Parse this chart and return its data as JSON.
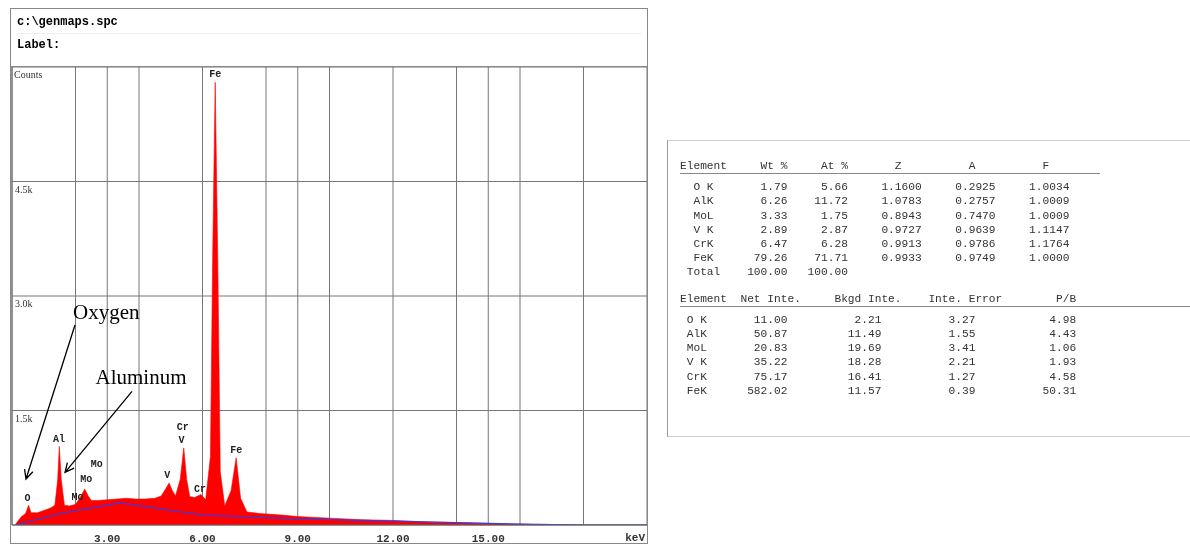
{
  "chart_data": [
    {
      "type": "area",
      "title": "c:\\genmaps.spc",
      "subtitle": "Label:",
      "xlabel": "keV",
      "ylabel": "Counts",
      "xlim": [
        0,
        20
      ],
      "ylim": [
        0,
        6000
      ],
      "xticks": [
        {
          "value": 2,
          "label": null
        },
        {
          "value": 3,
          "label": "3.00"
        },
        {
          "value": 4,
          "label": null
        },
        {
          "value": 6,
          "label": "6.00"
        },
        {
          "value": 8,
          "label": null
        },
        {
          "value": 9,
          "label": "9.00"
        },
        {
          "value": 10,
          "label": null
        },
        {
          "value": 12,
          "label": "12.00"
        },
        {
          "value": 14,
          "label": null
        },
        {
          "value": 15,
          "label": "15.00"
        },
        {
          "value": 16,
          "label": null
        },
        {
          "value": 18,
          "label": null
        }
      ],
      "yticks": [
        {
          "value": 1500,
          "label": "1.5k"
        },
        {
          "value": 3000,
          "label": "3.0k"
        },
        {
          "value": 4500,
          "label": "4.5k"
        }
      ],
      "grid": true,
      "series": [
        {
          "type": "area",
          "color": "#ff0000",
          "x": [
            0.1,
            0.2,
            0.3,
            0.4,
            0.45,
            0.52,
            0.6,
            0.8,
            1.0,
            1.2,
            1.35,
            1.44,
            1.49,
            1.55,
            1.65,
            1.8,
            2.0,
            2.1,
            2.2,
            2.29,
            2.4,
            2.5,
            2.7,
            3.0,
            3.3,
            3.6,
            3.9,
            4.2,
            4.5,
            4.7,
            4.85,
            4.95,
            5.05,
            5.15,
            5.3,
            5.41,
            5.5,
            5.6,
            5.75,
            5.95,
            6.1,
            6.25,
            6.32,
            6.4,
            6.48,
            6.56,
            6.7,
            6.9,
            7.06,
            7.2,
            7.4,
            7.8,
            8.5,
            9,
            10,
            11,
            12,
            13,
            14,
            15,
            16,
            17,
            18,
            20
          ],
          "values": [
            0,
            60,
            110,
            140,
            170,
            260,
            160,
            160,
            190,
            220,
            260,
            600,
            1030,
            600,
            260,
            250,
            270,
            330,
            400,
            470,
            380,
            320,
            320,
            330,
            340,
            350,
            340,
            340,
            350,
            380,
            480,
            550,
            450,
            380,
            600,
            1010,
            600,
            370,
            360,
            400,
            330,
            900,
            3500,
            5800,
            3500,
            700,
            250,
            450,
            880,
            350,
            170,
            150,
            130,
            110,
            90,
            70,
            60,
            40,
            30,
            20,
            10,
            0,
            0,
            0
          ]
        },
        {
          "type": "line",
          "color": "#3a3ae0",
          "x": [
            0.1,
            1.5,
            3.4,
            6,
            9,
            12,
            15,
            18,
            20
          ],
          "values": [
            0,
            150,
            290,
            130,
            80,
            50,
            20,
            0,
            0
          ]
        }
      ],
      "annotations": [
        {
          "text": "O",
          "x": 0.49,
          "y": 280
        },
        {
          "text": "Al",
          "x": 1.48,
          "y": 1050
        },
        {
          "text": "Mo",
          "x": 2.06,
          "y": 290
        },
        {
          "text": "Mo",
          "x": 2.34,
          "y": 520
        },
        {
          "text": "Mo",
          "x": 2.29,
          "y": 470
        },
        {
          "text": "V",
          "x": 4.89,
          "y": 580
        },
        {
          "text": "V",
          "x": 5.37,
          "y": 1040
        },
        {
          "text": "Cr",
          "x": 5.41,
          "y": 1010
        },
        {
          "text": "Cr",
          "x": 5.92,
          "y": 390
        },
        {
          "text": "Fe",
          "x": 6.4,
          "y": 5830
        },
        {
          "text": "Fe",
          "x": 7.06,
          "y": 900
        },
        "Oxygen",
        {
          "text": "Aluminum",
          "x": 1.67,
          "y": 690
        }
      ]
    },
    {
      "type": "other",
      "annotations": [
        "Element     Wt %     At %       Z          A          F",
        "  O K       1.79     5.66     1.1600     0.2925     1.0034",
        "  AlK       6.26    11.72     1.0783     0.2757     1.0009",
        "  MoL       3.33     1.75     0.8943     0.7470     1.0009",
        "  V K       2.89     2.87     0.9727     0.9639     1.1147",
        "  CrK       6.47     6.28     0.9913     0.9786     1.1764",
        "  FeK      79.26    71.71     0.9933     0.9749     1.0000",
        " Total    100.00   100.00",
        "Element  Net Inte.     Bkgd Inte.    Inte. Error        P/B",
        " O K       11.00          2.21          3.27           4.98",
        " AlK       50.87         11.49          1.55           4.43",
        " MoL       20.83         19.69          3.41           1.06",
        " V K       35.22         18.28          2.21           1.93",
        " CrK       75.17         16.41          1.27           4.58",
        " FeK      582.02         11.57          0.39          50.31"
      ]
    }
  ]
}
